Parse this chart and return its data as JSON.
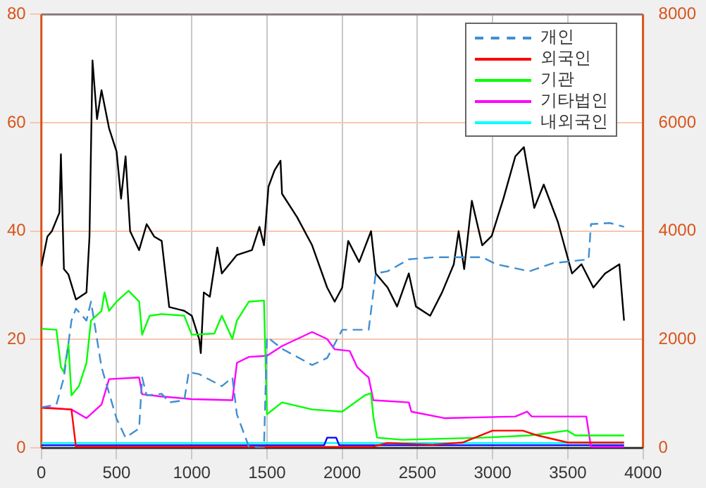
{
  "chart_data": {
    "type": "line",
    "xlim": [
      0,
      4000
    ],
    "xticks": [
      0,
      500,
      1000,
      1500,
      2000,
      2500,
      3000,
      3500,
      4000
    ],
    "ylim": [
      0,
      80
    ],
    "yticks": [
      0,
      20,
      40,
      60,
      80
    ],
    "y2lim": [
      0,
      8000
    ],
    "y2ticks": [
      0,
      2000,
      4000,
      6000,
      8000
    ],
    "grid": true,
    "legend": "top right",
    "marker": "none",
    "series": [
      {
        "name": "개인",
        "color": "#3f8fd2",
        "line_style": "dashed",
        "x": [
          0,
          100,
          150,
          200,
          230,
          300,
          330,
          400,
          500,
          560,
          650,
          670,
          700,
          800,
          850,
          950,
          980,
          1050,
          1200,
          1270,
          1300,
          1380,
          1480,
          1500,
          1600,
          1800,
          1900,
          1950,
          2000,
          2176,
          2223,
          2302,
          2443,
          2616,
          2931,
          3025,
          3245,
          3402,
          3638,
          3654,
          3780,
          3874
        ],
        "values": [
          7.5,
          8,
          13,
          23.5,
          25.7,
          23.5,
          27,
          14.9,
          5.4,
          1.9,
          3.6,
          13,
          9.7,
          10,
          8.4,
          8.8,
          14,
          13.6,
          11.4,
          13,
          6.2,
          0.2,
          0,
          20.5,
          18.3,
          15.3,
          16.6,
          19.2,
          21.8,
          21.8,
          32.2,
          32.6,
          34.8,
          35.2,
          35.2,
          33.9,
          32.6,
          34.1,
          34.8,
          41.3,
          41.5,
          40.8
        ]
      },
      {
        "name": "외국인",
        "color": "#ff0000",
        "x": [
          0,
          200,
          230,
          2200,
          2300,
          2600,
          2800,
          3000,
          3200,
          3300,
          3500,
          3874
        ],
        "values": [
          7.4,
          7.1,
          0.2,
          0.2,
          0.9,
          0.6,
          1,
          3.2,
          3.2,
          2.3,
          1,
          1
        ]
      },
      {
        "name": "기관",
        "color": "#00ff00",
        "x": [
          0,
          100,
          130,
          150,
          180,
          200,
          250,
          300,
          330,
          400,
          420,
          450,
          500,
          580,
          650,
          670,
          720,
          800,
          950,
          1000,
          1150,
          1200,
          1270,
          1300,
          1380,
          1480,
          1500,
          1600,
          1800,
          2000,
          2150,
          2192,
          2207,
          2232,
          2400,
          2931,
          3245,
          3497,
          3550,
          3874
        ],
        "values": [
          22,
          21.8,
          14.9,
          14,
          19.2,
          9.7,
          11.4,
          15.7,
          23.5,
          25.3,
          28.7,
          25.3,
          27,
          29,
          27,
          20.9,
          24.4,
          24.7,
          24.4,
          20.9,
          21.1,
          24.4,
          20.1,
          23.5,
          27,
          27.2,
          6.2,
          8.4,
          7.1,
          6.7,
          9.7,
          10.1,
          5.8,
          1.9,
          1.5,
          1.9,
          2.3,
          3.2,
          2.3,
          2.3
        ]
      },
      {
        "name": "기타법인",
        "color": "#ff00ff",
        "x": [
          0,
          200,
          300,
          400,
          450,
          650,
          670,
          800,
          1000,
          1270,
          1300,
          1380,
          1500,
          1600,
          1800,
          1900,
          1950,
          2050,
          2100,
          2150,
          2176,
          2207,
          2443,
          2460,
          2679,
          3151,
          3230,
          3260,
          3623,
          3654,
          3874
        ],
        "values": [
          7.5,
          7.1,
          5.5,
          8,
          12.7,
          13,
          9.9,
          9.5,
          9,
          8.8,
          15.7,
          16.8,
          17,
          18.8,
          21.4,
          20.1,
          18.2,
          17.9,
          14.9,
          13.6,
          13,
          8.8,
          8.4,
          6.7,
          5.5,
          5.8,
          6.7,
          5.8,
          5.8,
          0.2,
          0.2
        ]
      },
      {
        "color": "#0000ff",
        "x": [
          0,
          1880,
          1900,
          1960,
          1980,
          3874
        ],
        "values": [
          0.5,
          0.5,
          1.9,
          1.9,
          0.5,
          0.5
        ]
      },
      {
        "name": "내외국인",
        "color": "#00ffff",
        "x": [
          0,
          3874
        ],
        "values": [
          0.9,
          0.9
        ]
      },
      {
        "color": "#000000",
        "axis": "y2",
        "x": [
          0,
          40,
          70,
          120,
          130,
          150,
          180,
          230,
          300,
          320,
          340,
          370,
          400,
          450,
          500,
          530,
          560,
          590,
          650,
          700,
          750,
          800,
          850,
          950,
          1000,
          1050,
          1060,
          1080,
          1120,
          1170,
          1200,
          1300,
          1400,
          1450,
          1480,
          1510,
          1550,
          1590,
          1600,
          1700,
          1800,
          1900,
          1950,
          2000,
          2040,
          2113,
          2192,
          2223,
          2302,
          2365,
          2443,
          2490,
          2585,
          2664,
          2742,
          2774,
          2811,
          2862,
          2931,
          2994,
          3072,
          3151,
          3208,
          3245,
          3277,
          3340,
          3434,
          3528,
          3591,
          3670,
          3748,
          3843,
          3874
        ],
        "values": [
          3350,
          3900,
          4000,
          4340,
          5420,
          3300,
          3200,
          2740,
          2870,
          3900,
          7150,
          6070,
          6600,
          5900,
          5470,
          4600,
          5380,
          4000,
          3650,
          4130,
          3900,
          3820,
          2600,
          2530,
          2440,
          2000,
          1750,
          2870,
          2790,
          3700,
          3220,
          3560,
          3650,
          4080,
          3740,
          4820,
          5120,
          5300,
          4690,
          4260,
          3740,
          2960,
          2700,
          2960,
          3820,
          3430,
          4000,
          3220,
          2960,
          2610,
          3220,
          2610,
          2440,
          2870,
          3390,
          4000,
          3300,
          4560,
          3740,
          3910,
          4600,
          5380,
          5550,
          4950,
          4430,
          4860,
          4170,
          3220,
          3390,
          2960,
          3220,
          3390,
          2350
        ]
      }
    ]
  }
}
